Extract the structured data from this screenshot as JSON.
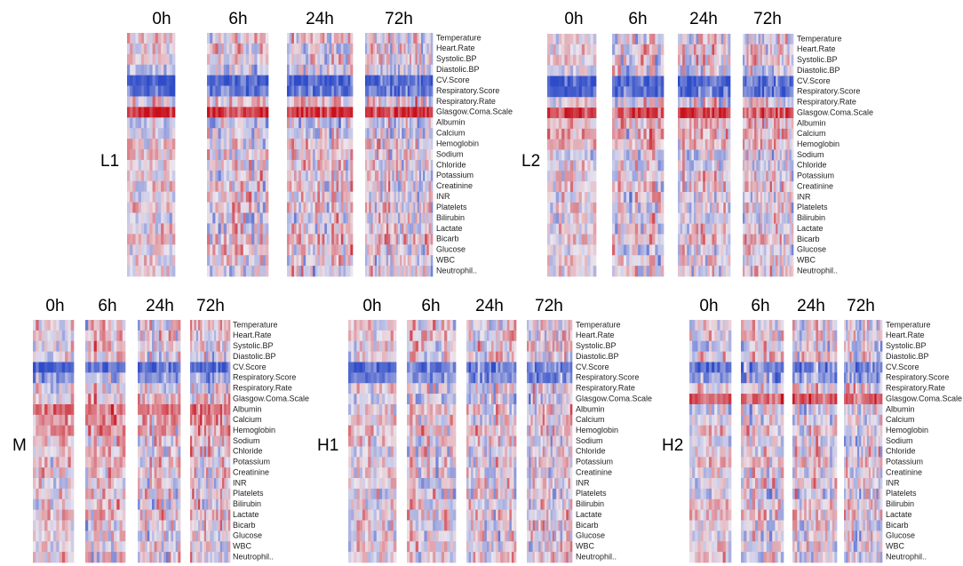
{
  "chart_data": {
    "type": "heatmap",
    "title": "",
    "time_points": [
      "0h",
      "6h",
      "24h",
      "72h"
    ],
    "variables": [
      "Temperature",
      "Heart.Rate",
      "Systolic.BP",
      "Diastolic.BP",
      "CV.Score",
      "Respiratory.Score",
      "Respiratory.Rate",
      "Glasgow.Coma.Scale",
      "Albumin",
      "Calcium",
      "Hemoglobin",
      "Sodium",
      "Chloride",
      "Potassium",
      "Creatinine",
      "INR",
      "Platelets",
      "Bilirubin",
      "Lactate",
      "Bicarb",
      "Glucose",
      "WBC",
      "Neutrophil.."
    ],
    "color_scale": {
      "low": "#2f4cc8",
      "mid": "#ece6ee",
      "high": "#c8101c"
    },
    "groups": [
      {
        "name": "L1",
        "row_bias": [
          0.05,
          0.0,
          0.05,
          -0.15,
          -0.9,
          -0.75,
          0.1,
          0.9,
          -0.2,
          -0.1,
          0.05,
          0.05,
          0.0,
          0.0,
          0.0,
          0.0,
          0.1,
          -0.05,
          0.0,
          0.15,
          0.05,
          0.0,
          0.0
        ]
      },
      {
        "name": "L2",
        "row_bias": [
          0.0,
          0.05,
          0.1,
          -0.1,
          -0.85,
          -0.8,
          0.0,
          0.75,
          0.2,
          0.25,
          0.2,
          -0.1,
          0.0,
          0.0,
          0.1,
          0.0,
          0.0,
          -0.05,
          0.05,
          0.1,
          0.0,
          0.0,
          0.0
        ]
      },
      {
        "name": "M",
        "row_bias": [
          0.1,
          0.1,
          0.05,
          0.0,
          -0.85,
          -0.45,
          0.0,
          0.1,
          0.55,
          0.35,
          0.3,
          0.1,
          0.1,
          0.1,
          0.1,
          0.0,
          0.05,
          0.0,
          0.1,
          0.05,
          0.0,
          0.0,
          0.0
        ]
      },
      {
        "name": "H1",
        "row_bias": [
          0.05,
          0.1,
          0.05,
          0.0,
          -0.75,
          -0.55,
          0.0,
          -0.1,
          0.1,
          0.1,
          0.1,
          0.05,
          0.0,
          0.05,
          0.0,
          0.0,
          0.0,
          0.0,
          0.05,
          0.0,
          0.0,
          0.05,
          0.05
        ]
      },
      {
        "name": "H2",
        "row_bias": [
          0.0,
          0.05,
          -0.1,
          0.1,
          -0.7,
          -0.45,
          0.1,
          0.6,
          -0.1,
          0.0,
          0.05,
          -0.1,
          0.0,
          0.1,
          0.0,
          0.0,
          -0.1,
          0.15,
          0.1,
          0.0,
          -0.05,
          0.0,
          0.0
        ]
      }
    ]
  }
}
